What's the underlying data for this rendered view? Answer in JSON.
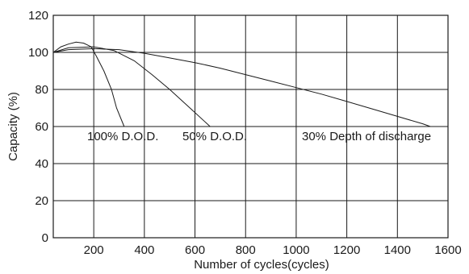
{
  "chart_data": {
    "type": "line",
    "xlabel": "Number of cycles(cycles)",
    "ylabel": "Capacity (%)",
    "xlim": [
      40,
      1600
    ],
    "ylim": [
      0,
      120
    ],
    "xticks": [
      200,
      400,
      600,
      800,
      1000,
      1200,
      1400,
      1600
    ],
    "yticks": [
      0,
      20,
      40,
      60,
      80,
      100,
      120
    ],
    "grid": true,
    "series": [
      {
        "name": "100% D.O.D.",
        "x": [
          40,
          70,
          100,
          130,
          160,
          190,
          210,
          240,
          270,
          290,
          320
        ],
        "y": [
          100,
          103,
          104.5,
          105.5,
          105,
          103,
          98,
          90,
          80,
          70,
          60
        ]
      },
      {
        "name": "50% D.O.D.",
        "x": [
          40,
          100,
          200,
          280,
          360,
          430,
          500,
          580,
          660
        ],
        "y": [
          100,
          102.5,
          103,
          101,
          95.5,
          88,
          80,
          70,
          60
        ]
      },
      {
        "name": "30% Depth of discharge",
        "x": [
          40,
          100,
          200,
          300,
          400,
          500,
          600,
          700,
          800,
          900,
          1000,
          1100,
          1200,
          1300,
          1400,
          1500,
          1530
        ],
        "y": [
          100,
          101.5,
          102,
          101.5,
          99.5,
          97,
          94.5,
          91.5,
          88,
          84.5,
          81,
          77.5,
          73.5,
          69.5,
          65.5,
          61.5,
          60
        ]
      }
    ]
  }
}
